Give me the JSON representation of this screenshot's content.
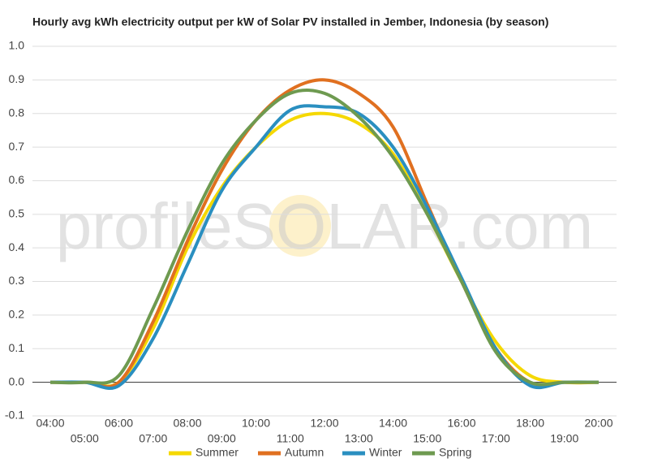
{
  "chart_data": {
    "type": "line",
    "title": "Hourly avg kWh electricity output per kW of Solar PV installed in Jember, Indonesia (by season)",
    "watermark": "profileSOLAR.com",
    "categories": [
      "04:00",
      "05:00",
      "06:00",
      "07:00",
      "08:00",
      "09:00",
      "10:00",
      "11:00",
      "12:00",
      "13:00",
      "14:00",
      "15:00",
      "16:00",
      "17:00",
      "18:00",
      "19:00",
      "20:00"
    ],
    "series": [
      {
        "name": "Summer",
        "color": "#f5d800",
        "values": [
          0,
          0,
          0,
          0.16,
          0.4,
          0.58,
          0.7,
          0.78,
          0.8,
          0.77,
          0.68,
          0.5,
          0.3,
          0.12,
          0.02,
          0,
          0
        ]
      },
      {
        "name": "Autumn",
        "color": "#e07020",
        "values": [
          0,
          0,
          0,
          0.18,
          0.42,
          0.63,
          0.78,
          0.87,
          0.9,
          0.86,
          0.76,
          0.53,
          0.3,
          0.1,
          0,
          0,
          0
        ]
      },
      {
        "name": "Winter",
        "color": "#2a8fc0",
        "values": [
          0,
          0,
          -0.01,
          0.13,
          0.35,
          0.57,
          0.7,
          0.81,
          0.82,
          0.8,
          0.7,
          0.52,
          0.31,
          0.1,
          -0.01,
          0,
          0
        ]
      },
      {
        "name": "Spring",
        "color": "#6e9a50",
        "values": [
          0,
          0,
          0.02,
          0.22,
          0.45,
          0.65,
          0.78,
          0.86,
          0.86,
          0.79,
          0.67,
          0.5,
          0.3,
          0.09,
          0,
          0,
          0
        ]
      }
    ],
    "ylim": [
      -0.1,
      1.0
    ],
    "yticks": [
      {
        "value": -0.1,
        "label": "-0.1"
      },
      {
        "value": 0,
        "label": "0.0"
      },
      0.1,
      0.2,
      0.3,
      0.4,
      0.5,
      0.6,
      0.7,
      0.8,
      0.9,
      {
        "value": 1,
        "label": "1.0"
      }
    ],
    "grid": true,
    "legend": "bottom"
  }
}
